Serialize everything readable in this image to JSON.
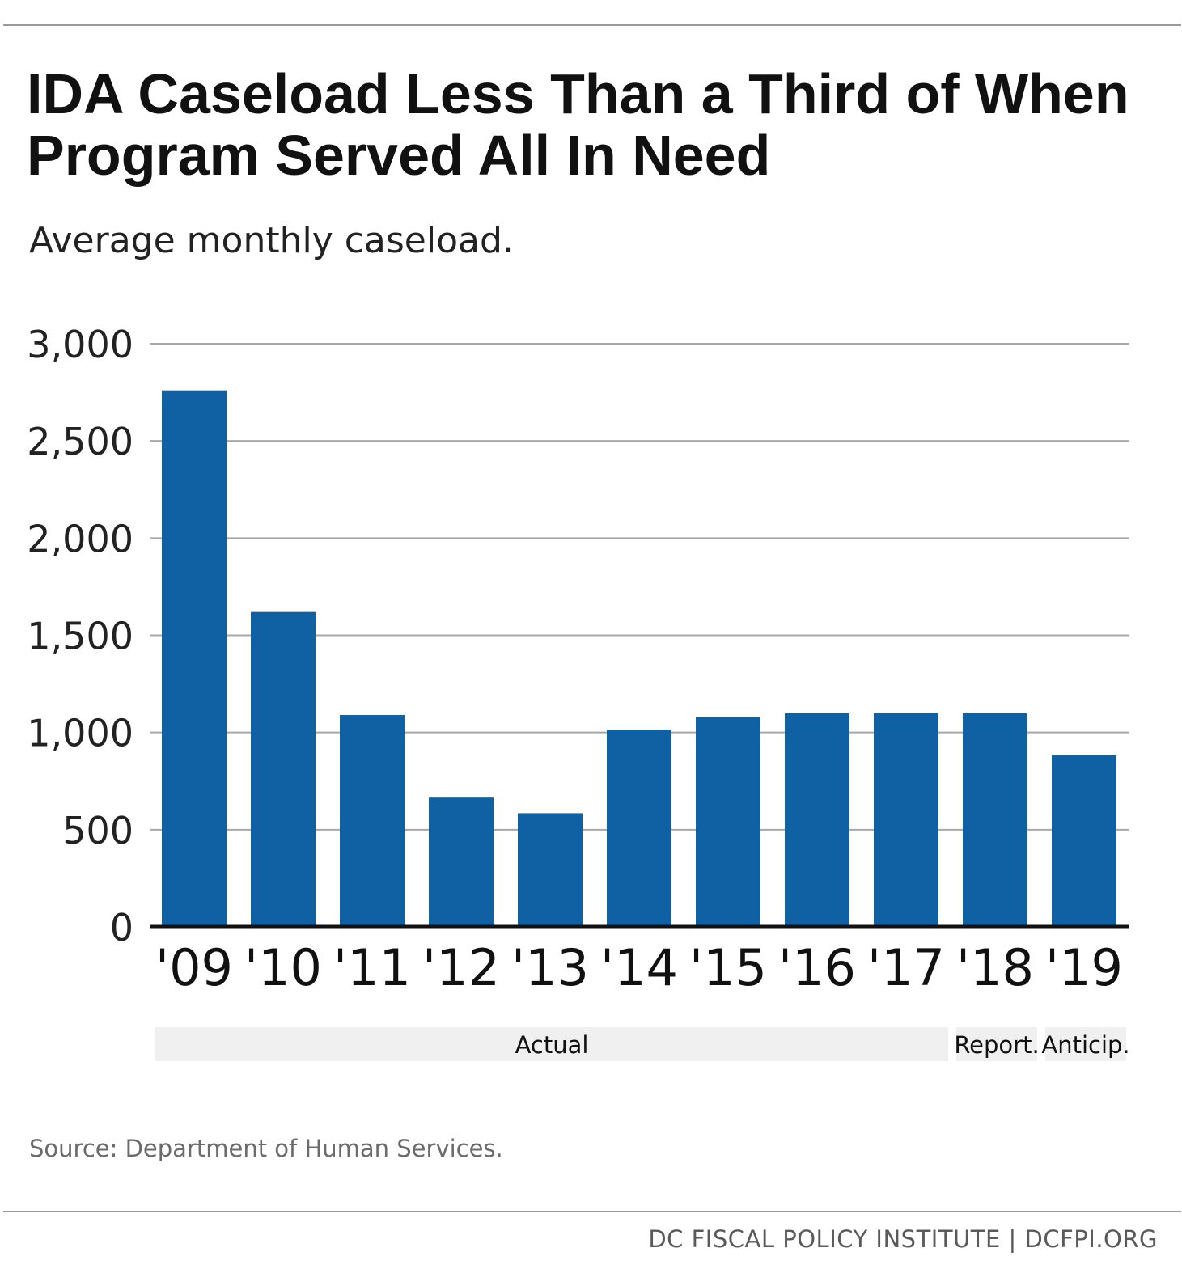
{
  "title": "IDA Caseload Less Than a Third of When Program Served All In Need",
  "subtitle": "Average monthly caseload.",
  "source": "Source: Department of Human Services.",
  "footer": "DC FISCAL POLICY INSTITUTE | DCFPI.ORG",
  "colors": {
    "bar": "#1060a4",
    "grid": "#a8a8a8",
    "axis": "#111111",
    "band": "#f0f0f0"
  },
  "chart_data": {
    "type": "bar",
    "categories": [
      "'09",
      "'10",
      "'11",
      "'12",
      "'13",
      "'14",
      "'15",
      "'16",
      "'17",
      "'18",
      "'19"
    ],
    "values": [
      2760,
      1620,
      1090,
      665,
      585,
      1015,
      1080,
      1100,
      1100,
      1100,
      885
    ],
    "ylim": [
      0,
      3000
    ],
    "yticks": [
      0,
      500,
      1000,
      1500,
      2000,
      2500,
      3000
    ],
    "ytick_labels": [
      "0",
      "500",
      "1,000",
      "1,500",
      "2,000",
      "2,500",
      "3,000"
    ],
    "grid": true,
    "groups": [
      {
        "label": "Actual",
        "from": 0,
        "to": 8
      },
      {
        "label": "Report.",
        "from": 9,
        "to": 9
      },
      {
        "label": "Anticip.",
        "from": 10,
        "to": 10
      }
    ]
  }
}
